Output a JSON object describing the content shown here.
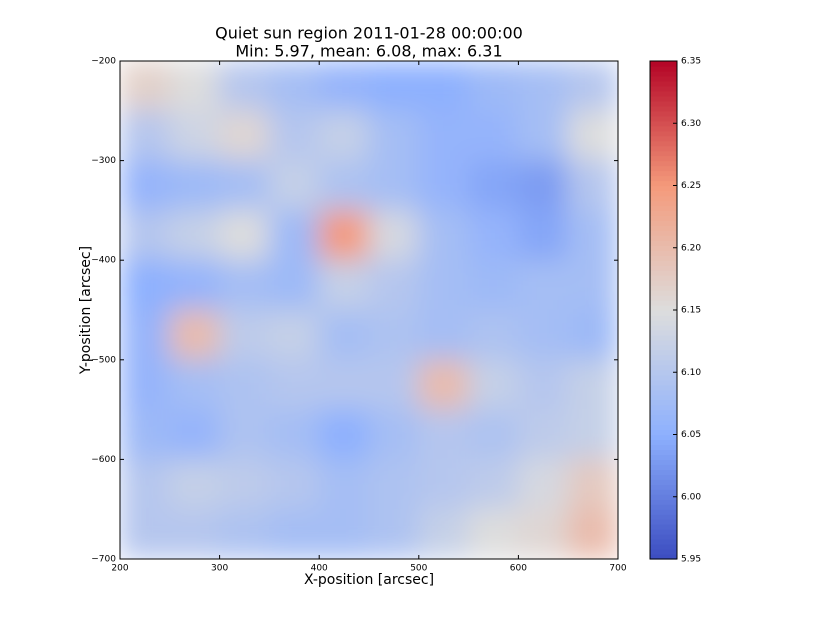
{
  "chart_data": {
    "type": "heatmap",
    "title": "Quiet sun region 2011-01-28 00:00:00",
    "subtitle": "Min: 5.97, mean: 6.08, max: 6.31",
    "xlabel": "X-position [arcsec]",
    "ylabel": "Y-position [arcsec]",
    "xlim": [
      200,
      700
    ],
    "ylim": [
      -200,
      -700
    ],
    "xticks": [
      200,
      300,
      400,
      500,
      600,
      700
    ],
    "yticks": [
      {
        "value": -200,
        "label": "−200"
      },
      {
        "value": -300,
        "label": "−300"
      },
      {
        "value": -400,
        "label": "−400"
      },
      {
        "value": -500,
        "label": "−500"
      },
      {
        "value": -600,
        "label": "−600"
      },
      {
        "value": -700,
        "label": "−700"
      }
    ],
    "colormap": "coolwarm",
    "clim": [
      5.95,
      6.35
    ],
    "cticks": [
      {
        "value": 5.95,
        "label": "5.95"
      },
      {
        "value": 6.0,
        "label": "6.00"
      },
      6.05,
      {
        "value": 6.1,
        "label": "6.10"
      },
      6.15,
      {
        "value": 6.2,
        "label": "6.20"
      },
      6.25,
      {
        "value": 6.3,
        "label": "6.30"
      },
      6.35
    ],
    "values": [
      [
        6.17,
        6.15,
        6.1,
        6.08,
        6.06,
        6.05,
        6.05,
        6.07,
        6.08,
        6.1
      ],
      [
        6.1,
        6.13,
        6.16,
        6.1,
        6.12,
        6.08,
        6.06,
        6.06,
        6.08,
        6.15
      ],
      [
        6.06,
        6.07,
        6.08,
        6.12,
        6.09,
        6.08,
        6.06,
        6.04,
        6.03,
        6.1
      ],
      [
        6.1,
        6.12,
        6.15,
        6.07,
        6.25,
        6.14,
        6.08,
        6.06,
        6.04,
        6.08
      ],
      [
        6.05,
        6.06,
        6.08,
        6.07,
        6.12,
        6.1,
        6.08,
        6.07,
        6.08,
        6.08
      ],
      [
        6.06,
        6.2,
        6.11,
        6.12,
        6.08,
        6.09,
        6.08,
        6.09,
        6.08,
        6.07
      ],
      [
        6.06,
        6.08,
        6.09,
        6.1,
        6.1,
        6.1,
        6.2,
        6.12,
        6.1,
        6.12
      ],
      [
        6.07,
        6.06,
        6.09,
        6.08,
        6.05,
        6.08,
        6.1,
        6.09,
        6.11,
        6.12
      ],
      [
        6.1,
        6.12,
        6.11,
        6.1,
        6.08,
        6.09,
        6.1,
        6.11,
        6.14,
        6.18
      ],
      [
        6.1,
        6.1,
        6.09,
        6.08,
        6.08,
        6.09,
        6.12,
        6.15,
        6.16,
        6.2
      ]
    ]
  }
}
